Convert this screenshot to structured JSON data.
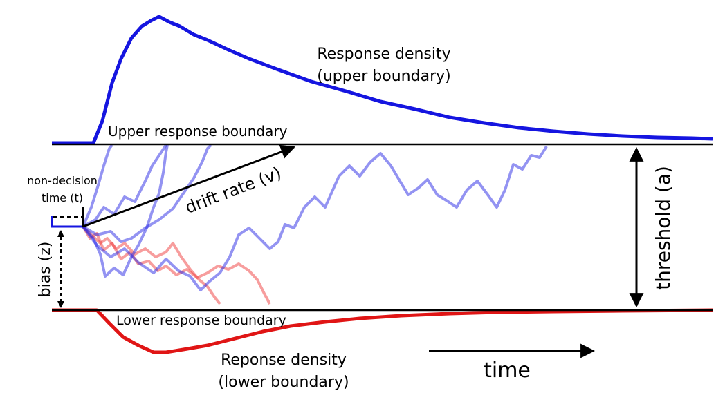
{
  "labels": {
    "upper_density": [
      "Response density",
      "(upper boundary)"
    ],
    "upper_boundary": "Upper response boundary",
    "non_decision": [
      "non-decision",
      "time (t)"
    ],
    "drift_rate": "drift rate (v)",
    "threshold": "threshold (a)",
    "bias": "bias (z)",
    "lower_boundary": "Lower response boundary",
    "lower_density": [
      "Reponse density",
      "(lower boundary)"
    ],
    "time": "time"
  }
}
